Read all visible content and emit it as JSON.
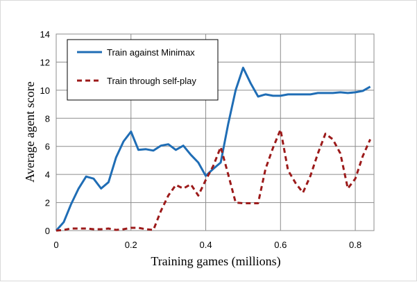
{
  "chart_data": {
    "type": "line",
    "xlabel": "Training games (millions)",
    "ylabel": "Average agent score",
    "xlim": [
      0,
      0.85
    ],
    "ylim": [
      0,
      14
    ],
    "xticks": [
      0,
      0.2,
      0.4,
      0.6,
      0.8
    ],
    "xtick_labels": [
      "0",
      "0.2",
      "0.4",
      "0.6",
      "0.8"
    ],
    "yticks": [
      0,
      2,
      4,
      6,
      8,
      10,
      12,
      14
    ],
    "ytick_labels": [
      "0",
      "2",
      "4",
      "6",
      "8",
      "10",
      "12",
      "14"
    ],
    "grid": true,
    "legend_position": "top-left",
    "series": [
      {
        "name": "Train against Minimax",
        "color": "#1f6db5",
        "style": "solid",
        "x": [
          0,
          0.02,
          0.04,
          0.06,
          0.08,
          0.1,
          0.12,
          0.14,
          0.16,
          0.18,
          0.2,
          0.22,
          0.24,
          0.26,
          0.28,
          0.3,
          0.32,
          0.34,
          0.36,
          0.38,
          0.4,
          0.42,
          0.44,
          0.46,
          0.48,
          0.5,
          0.52,
          0.54,
          0.56,
          0.58,
          0.6,
          0.62,
          0.64,
          0.66,
          0.68,
          0.7,
          0.72,
          0.74,
          0.76,
          0.78,
          0.8,
          0.82,
          0.84
        ],
        "y": [
          0,
          0.6,
          1.9,
          3.0,
          3.85,
          3.7,
          3.0,
          3.45,
          5.2,
          6.35,
          7.05,
          5.75,
          5.8,
          5.7,
          6.05,
          6.15,
          5.75,
          6.05,
          5.4,
          4.85,
          3.9,
          4.4,
          4.85,
          7.6,
          10.0,
          11.6,
          10.5,
          9.55,
          9.7,
          9.6,
          9.6,
          9.7,
          9.7,
          9.7,
          9.7,
          9.8,
          9.8,
          9.8,
          9.85,
          9.8,
          9.85,
          9.95,
          10.25
        ]
      },
      {
        "name": "Train through self-play",
        "color": "#9c1a1a",
        "style": "dashed",
        "x": [
          0,
          0.02,
          0.04,
          0.06,
          0.08,
          0.1,
          0.12,
          0.14,
          0.16,
          0.18,
          0.2,
          0.22,
          0.24,
          0.26,
          0.28,
          0.3,
          0.32,
          0.34,
          0.36,
          0.38,
          0.4,
          0.42,
          0.44,
          0.46,
          0.48,
          0.5,
          0.52,
          0.54,
          0.56,
          0.58,
          0.6,
          0.62,
          0.64,
          0.66,
          0.68,
          0.7,
          0.72,
          0.74,
          0.76,
          0.78,
          0.8,
          0.82,
          0.84
        ],
        "y": [
          0,
          0.05,
          0.15,
          0.15,
          0.15,
          0.1,
          0.1,
          0.15,
          0.05,
          0.1,
          0.2,
          0.2,
          0.1,
          0.05,
          1.4,
          2.5,
          3.25,
          3.0,
          3.3,
          2.5,
          3.6,
          4.6,
          5.95,
          4.0,
          2.0,
          1.95,
          1.95,
          1.95,
          4.4,
          5.9,
          7.2,
          4.3,
          3.4,
          2.7,
          3.9,
          5.5,
          6.9,
          6.5,
          5.5,
          3.0,
          3.7,
          5.3,
          6.5
        ]
      }
    ]
  }
}
